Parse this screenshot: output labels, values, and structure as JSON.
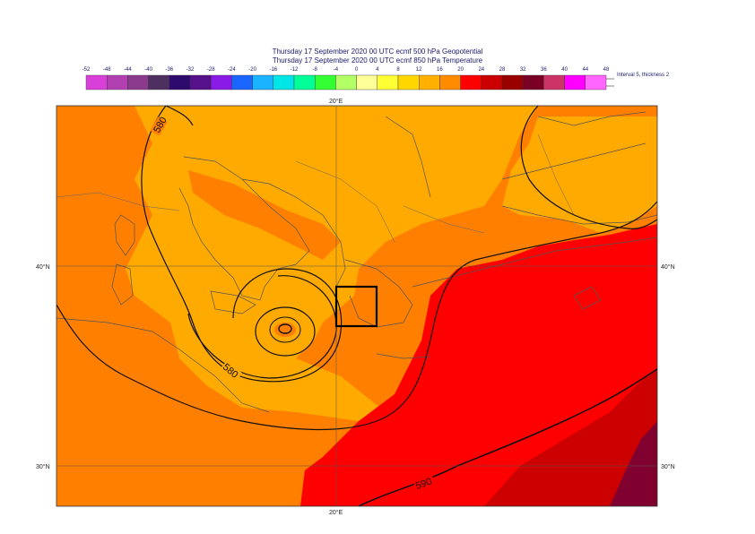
{
  "header": {
    "title_line1": "Thursday 17 September 2020 00 UTC ecmf 500 hPa  Geopotential",
    "title_line2": "Thursday 17 September 2020 00 UTC ecmf 850 hPa  Temperature"
  },
  "legend": {
    "ticks": [
      "-52",
      "-48",
      "-44",
      "-40",
      "-36",
      "-32",
      "-28",
      "-24",
      "-20",
      "-16",
      "-12",
      "-8",
      "-4",
      "0",
      "4",
      "8",
      "12",
      "16",
      "20",
      "24",
      "28",
      "32",
      "36",
      "40",
      "44",
      "48"
    ],
    "colors": [
      "#d940d9",
      "#b340b3",
      "#8c3a8c",
      "#4d3060",
      "#2e0a6e",
      "#55108a",
      "#8a1ae6",
      "#1a66ff",
      "#1ab3ff",
      "#00e6e6",
      "#00ff99",
      "#33ff33",
      "#b3ff66",
      "#ffff99",
      "#ffff33",
      "#ffd700",
      "#ffb000",
      "#ff8c00",
      "#ff0000",
      "#cc0000",
      "#990000",
      "#7a0026",
      "#cc3366",
      "#ff00ff",
      "#ff66ff",
      "#ffb3f0"
    ],
    "note": "Interval 5, thickness 2"
  },
  "axes": {
    "lon_top": "20°E",
    "lon_bottom": "20°E",
    "lat_40_left": "40°N",
    "lat_40_right": "40°N",
    "lat_30_left": "30°N",
    "lat_30_right": "30°N"
  },
  "contours": {
    "label_580_top": "580",
    "label_580_mid": "580",
    "label_590": "590"
  },
  "colors": {
    "orange_dark": "#ff7f00",
    "orange_light": "#ffaa00",
    "red": "#ff0000",
    "dark_red": "#cc0000",
    "maroon": "#800030"
  }
}
